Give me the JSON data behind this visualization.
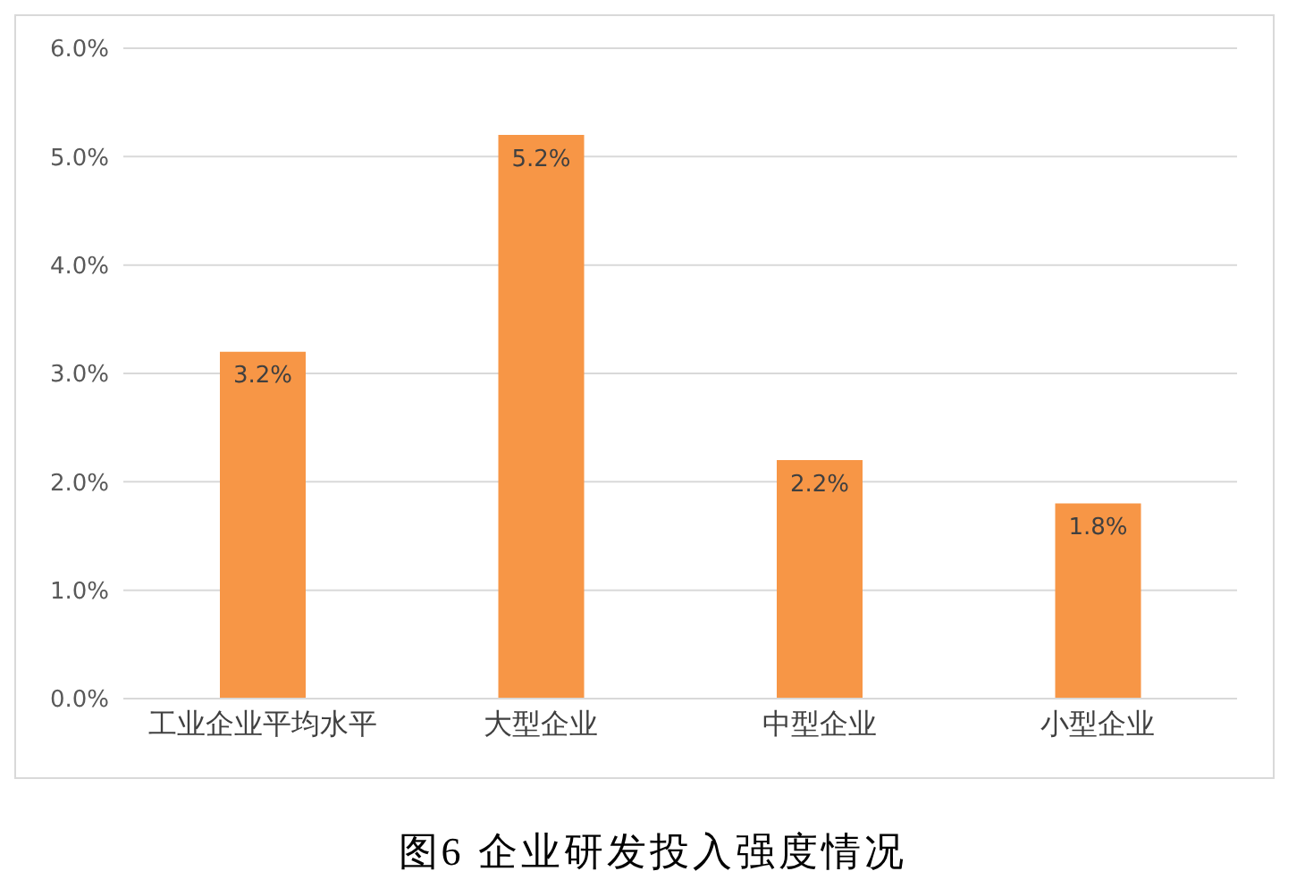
{
  "chart_data": {
    "type": "bar",
    "title": "图6 企业研发投入强度情况",
    "categories": [
      "工业企业平均水平",
      "大型企业",
      "中型企业",
      "小型企业"
    ],
    "values": [
      3.2,
      5.2,
      2.2,
      1.8
    ],
    "value_labels": [
      "3.2%",
      "5.2%",
      "2.2%",
      "1.8%"
    ],
    "color": "#f79646",
    "ylim": [
      0,
      6
    ],
    "yticks": [
      {
        "value": 0,
        "label": "0.0%"
      },
      {
        "value": 1,
        "label": "1.0%"
      },
      {
        "value": 2,
        "label": "2.0%"
      },
      {
        "value": 3,
        "label": "3.0%"
      },
      {
        "value": 4,
        "label": "4.0%"
      },
      {
        "value": 5,
        "label": "5.0%"
      },
      {
        "value": 6,
        "label": "6.0%"
      }
    ],
    "grid": "y"
  }
}
